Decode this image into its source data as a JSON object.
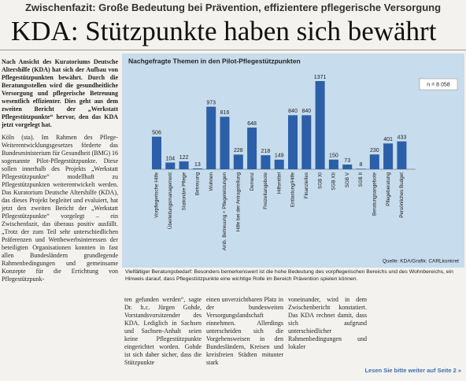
{
  "header": {
    "kicker": "Zwischenfazit: Große Bedeutung bei Prävention, effizientere pflegerische Versorgung",
    "title": "KDA: Stützpunkte haben sich bewährt"
  },
  "lead": "Nach Ansicht des Kuratoriums Deutsche Altershilfe (KDA) hat sich der Aufbau von Pflegestützpunkten bewährt. Durch die Beratungsstellen wird die gesundheitliche Versorgung und pflegerische Betreuung wesentlich effizienter. Dies geht aus dem zweiten Bericht der „Werkstatt Pflegestützpunkte“ hervor, den das KDA jetzt vorgelegt hat.",
  "columns": [
    "Köln (sta). Im Rahmen des Pflege-Weiterentwicklungsgesetzes förderte das Bundesministerium für Gesundheit (BMG) 16 sogenannte Pilot-Pflegestützpunkte. Diese sollen innerhalb des Projekts „Werkstatt Pflegestützpunkte“ modellhaft zu Pflegestützpunkten weiterentwickelt werden. Das Kuratorium Deutsche Altershilfe (KDA), das dieses Projekt begleitet und evaluiert, hat jetzt den zweiten Bericht der „Werkstatt Pflegestützpunkte“ vorgelegt – ein Zwischenfazit, das überaus positiv ausfällt. „Trotz der zum Teil sehr unterschiedlichen Präferenzen und Wettbewerbsinteressen der beteiligten Organisationen konnten in fast allen Bundesländern grundlegende Rahmenbedingungen und gemeinsame Konzepte für die Errichtung von Pflegestützpunk-",
    "ten gefunden werden“, sagte Dr. h.c. Jürgen Gohde, Vorstandsvorsitzender des KDA. Lediglich in Sachsen und Sachsen-Anhalt seien keine Pflegestützpunkte eingerichtet worden. Gohde ist sich daher sicher, dass die Stützpunkte",
    "einen unverzichtbaren Platz in der bundesweiten Versorgungslandschaft einnehmen. Allerdings unterscheiden sich die Vorgehensweisen in den Bundesländern, Kreisen und kreisfreien Städten mitunter stark",
    "voneinander, wird in dem Zwischenbericht konstatiert. Das KDA rechnet damit, dass sich aufgrund unterschiedlicher Rahmenbedingungen und lokaler"
  ],
  "footer": "Lesen Sie bitte weiter auf Seite 2 »",
  "chart_data": {
    "type": "bar",
    "title": "Nachgefragte Themen in den Pilot-Pflegestützpunkten",
    "note": "n = 8 058",
    "source": "Quelle: KDA/Grafik: CARLkonkret",
    "caption": "Vielfältiger Beratungsbedarf: Besonders bemerkenswert ist die hohe Bedeutung des vorpflegerischen Bereichs und des Wohnbereichs, ein Hinweis darauf, dass Pflegestützpunkte eine wichtige Rolle im Bereich Prävention spielen können.",
    "categories": [
      "Vorpflegerische Hilfe",
      "Überleitungsmanagement",
      "Stationäre Pflege",
      "Betreuung",
      "Wohnen",
      "Amb. Betreuung + Pflegeleistungen",
      "Hilfe bei der Antragstellung",
      "Demenz",
      "Freizeitangebote",
      "Hilfsmittel",
      "Entlastung/Hilfe",
      "Finanzielles",
      "SGB XI",
      "SGB XII",
      "SGB V",
      "SGB II",
      "Beratungsangebote",
      "Pflegeberatung",
      "Persönliches Budget"
    ],
    "values": [
      506,
      104,
      122,
      13,
      973,
      816,
      228,
      648,
      218,
      149,
      840,
      840,
      1371,
      150,
      73,
      8,
      230,
      401,
      433
    ],
    "color": "#2b5fa8"
  }
}
